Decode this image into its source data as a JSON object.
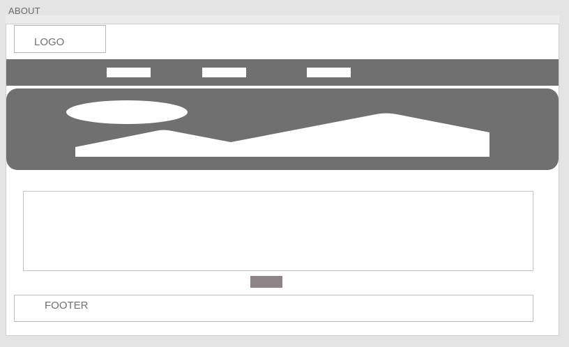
{
  "page": {
    "title": "ABOUT"
  },
  "header": {
    "logo_label": "LOGO"
  },
  "nav": {
    "items": [
      "",
      "",
      ""
    ]
  },
  "hero": {
    "image_icon": "image-placeholder-icon"
  },
  "footer": {
    "label": "FOOTER"
  },
  "colors": {
    "canvas": "#e4e4e4",
    "frame": "#ffffff",
    "nav_bar": "#707070",
    "hero_fill": "#707070",
    "button_fill": "#8c8486",
    "text": "#707070"
  }
}
